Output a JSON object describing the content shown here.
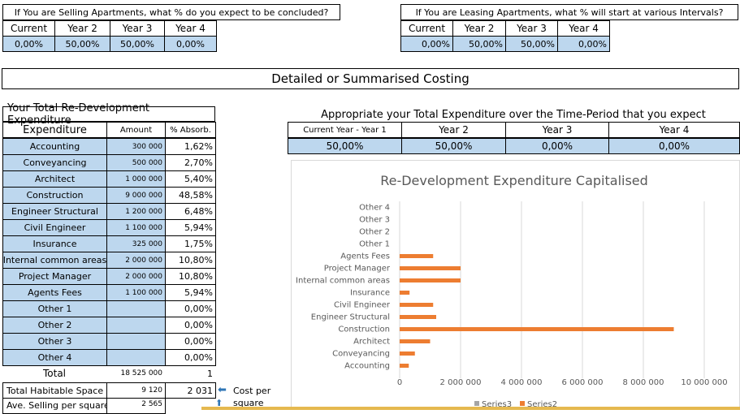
{
  "selling": {
    "title": "If You are Selling Apartments, what % do you expect to be concluded?",
    "headers": [
      "Current",
      "Year 2",
      "Year 3",
      "Year 4"
    ],
    "values": [
      "0,00%",
      "50,00%",
      "50,00%",
      "0,00%"
    ]
  },
  "leasing": {
    "title": "If You are Leasing Apartments, what % will start at various Intervals?",
    "headers": [
      "Current",
      "Year 2",
      "Year 3",
      "Year 4"
    ],
    "values": [
      "0,00%",
      "50,00%",
      "50,00%",
      "0,00%"
    ]
  },
  "costing_title": "Detailed or Summarised Costing",
  "expenditure": {
    "title": "Your Total Re-Development Expenditure",
    "col_headers": [
      "Expenditure",
      "Amount",
      "% Absorb."
    ],
    "rows": [
      {
        "label": "Accounting",
        "amount": "300 000",
        "pct": "1,62%"
      },
      {
        "label": "Conveyancing",
        "amount": "500 000",
        "pct": "2,70%"
      },
      {
        "label": "Architect",
        "amount": "1 000 000",
        "pct": "5,40%"
      },
      {
        "label": "Construction",
        "amount": "9 000 000",
        "pct": "48,58%"
      },
      {
        "label": "Engineer Structural",
        "amount": "1 200 000",
        "pct": "6,48%"
      },
      {
        "label": "Civil Engineer",
        "amount": "1 100 000",
        "pct": "5,94%"
      },
      {
        "label": "Insurance",
        "amount": "325 000",
        "pct": "1,75%"
      },
      {
        "label": "Internal common areas",
        "amount": "2 000 000",
        "pct": "10,80%"
      },
      {
        "label": "Project Manager",
        "amount": "2 000 000",
        "pct": "10,80%"
      },
      {
        "label": "Agents Fees",
        "amount": "1 100 000",
        "pct": "5,94%"
      },
      {
        "label": "Other 1",
        "amount": "",
        "pct": "0,00%"
      },
      {
        "label": "Other 2",
        "amount": "",
        "pct": "0,00%"
      },
      {
        "label": "Other 3",
        "amount": "",
        "pct": "0,00%"
      },
      {
        "label": "Other 4",
        "amount": "",
        "pct": "0,00%"
      }
    ],
    "total_label": "Total",
    "total_amount": "18 525 000",
    "total_pct": "1",
    "habitable_label": "Total Habitable Space",
    "habitable_amount": "9 120",
    "habitable_pct": "2 031",
    "cost_per_square": "Cost per square",
    "selling_label": "Ave. Selling per square",
    "selling_amount": "2 565"
  },
  "appropriate": {
    "title": "Appropriate your Total Expenditure over the Time-Period that you expect",
    "headers": [
      "Current Year - Year 1",
      "Year 2",
      "Year 3",
      "Year 4"
    ],
    "values": [
      "50,00%",
      "50,00%",
      "0,00%",
      "0,00%"
    ]
  },
  "chart_data": {
    "type": "bar",
    "orientation": "horizontal",
    "title": "Re-Development Expenditure Capitalised",
    "categories": [
      "Accounting",
      "Conveyancing",
      "Architect",
      "Construction",
      "Engineer Structural",
      "Civil Engineer",
      "Insurance",
      "Internal common areas",
      "Project Manager",
      "Agents Fees",
      "Other 1",
      "Other 2",
      "Other 3",
      "Other 4"
    ],
    "series": [
      {
        "name": "Series2",
        "color": "#ed7d31",
        "values": [
          300000,
          500000,
          1000000,
          9000000,
          1200000,
          1100000,
          325000,
          2000000,
          2000000,
          1100000,
          0,
          0,
          0,
          0
        ]
      },
      {
        "name": "Series3",
        "color": "#a5a5a5",
        "values": [
          0,
          0,
          0,
          0,
          0,
          0,
          0,
          0,
          0,
          0,
          0,
          0,
          0,
          0
        ]
      }
    ],
    "xlim": [
      0,
      10000000
    ],
    "xticks": [
      "0",
      "2 000 000",
      "4 000 000",
      "6 000 000",
      "8 000 000",
      "10 000 000"
    ],
    "grid": true,
    "legend": "bottom"
  }
}
